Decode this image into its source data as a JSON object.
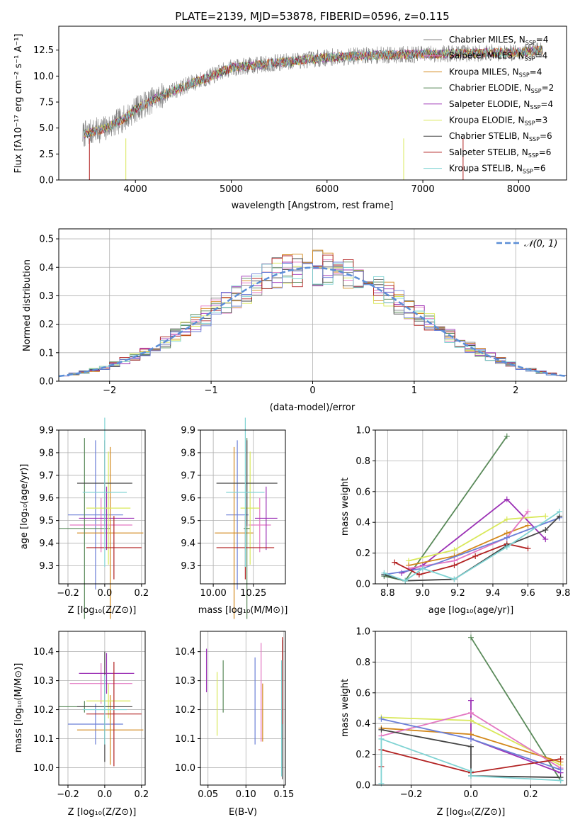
{
  "chart_data": [
    {
      "type": "line",
      "title": "PLATE=2139, MJD=53878, FIBERID=0596, z=0.115",
      "xlabel": "wavelength [Angstrom, rest frame]",
      "ylabel": "Flux [fλ10⁻¹⁷ erg cm⁻² s⁻¹ A⁻¹]",
      "xlim": [
        3200,
        8500
      ],
      "ylim": [
        0,
        14.8
      ],
      "xticks": [
        "4000",
        "5000",
        "6000",
        "7000",
        "8000"
      ],
      "yticks": [
        "0.0",
        "2.5",
        "5.0",
        "7.5",
        "10.0",
        "12.5"
      ],
      "legend_position": "right",
      "series": [
        {
          "name": "Chabrier MILES, N_SSP=4",
          "color": "#808080"
        },
        {
          "name": "Salpeter MILES, N_SSP=4",
          "color": "#e377c2"
        },
        {
          "name": "Kroupa MILES, N_SSP=4",
          "color": "#d2871a"
        },
        {
          "name": "Chabrier ELODIE, N_SSP=2",
          "color": "#5a8a5a"
        },
        {
          "name": "Salpeter ELODIE, N_SSP=4",
          "color": "#9b30b5"
        },
        {
          "name": "Kroupa ELODIE, N_SSP=3",
          "color": "#d9e85a"
        },
        {
          "name": "Chabrier STELIB, N_SSP=6",
          "color": "#444444"
        },
        {
          "name": "Salpeter STELIB, N_SSP=6",
          "color": "#b22222"
        },
        {
          "name": "Kroupa STELIB, N_SSP=6",
          "color": "#7fd3d3"
        }
      ],
      "continuum": {
        "x": [
          3500,
          3700,
          3900,
          4000,
          4200,
          4500,
          4800,
          5000,
          5500,
          6000,
          6500,
          7000,
          7500,
          8000,
          8250
        ],
        "y": [
          4.5,
          5.0,
          6.0,
          6.8,
          7.8,
          9.0,
          10.0,
          10.8,
          11.3,
          11.8,
          12.0,
          12.1,
          12.2,
          12.3,
          12.5
        ]
      }
    },
    {
      "type": "line",
      "xlabel": "(data-model)/error",
      "ylabel": "Normed distribution",
      "xlim": [
        -2.5,
        2.5
      ],
      "ylim": [
        0,
        0.535
      ],
      "xticks": [
        "−2",
        "−1",
        "0",
        "1",
        "2"
      ],
      "yticks": [
        "0.0",
        "0.1",
        "0.2",
        "0.3",
        "0.4",
        "0.5"
      ],
      "grid": true,
      "legend": [
        "𝒩(0, 1)"
      ],
      "legend_position": "top-right"
    },
    {
      "type": "scatter",
      "xlabel": "Z [log₁₀(Z/Z⊙)]",
      "ylabel": "age  [log₁₀(age/yr)]",
      "xlim": [
        -0.25,
        0.22
      ],
      "ylim": [
        9.22,
        9.9
      ],
      "xticks": [
        "−0.2",
        "0.0",
        "0.2"
      ],
      "yticks": [
        "9.3",
        "9.4",
        "9.5",
        "9.6",
        "9.7",
        "9.8",
        "9.9"
      ],
      "points": [
        {
          "x": -0.05,
          "y": 9.525,
          "xerr": 0.15,
          "yerr": 0.33,
          "color": "#6b7fd7"
        },
        {
          "x": -0.02,
          "y": 9.48,
          "xerr": 0.17,
          "yerr": 0.12,
          "color": "#e377c2"
        },
        {
          "x": 0.03,
          "y": 9.445,
          "xerr": 0.18,
          "yerr": 0.38,
          "color": "#d2871a"
        },
        {
          "x": -0.11,
          "y": 9.465,
          "xerr": 0.14,
          "yerr": 0.4,
          "color": "#5a8a5a"
        },
        {
          "x": 0.01,
          "y": 9.51,
          "xerr": 0.15,
          "yerr": 0.14,
          "color": "#9b30b5"
        },
        {
          "x": 0.02,
          "y": 9.555,
          "xerr": 0.12,
          "yerr": 0.25,
          "color": "#d9e85a"
        },
        {
          "x": 0.0,
          "y": 9.665,
          "xerr": 0.15,
          "yerr": 0.19,
          "color": "#444444"
        },
        {
          "x": 0.05,
          "y": 9.38,
          "xerr": 0.15,
          "yerr": 0.14,
          "color": "#b22222"
        },
        {
          "x": 0.0,
          "y": 9.625,
          "xerr": 0.12,
          "yerr": 0.33,
          "color": "#7fd3d3"
        }
      ]
    },
    {
      "type": "scatter",
      "xlabel": "mass [log₁₀(M/M⊙)]",
      "xlim": [
        9.92,
        10.45
      ],
      "ylim": [
        9.22,
        9.9
      ],
      "xticks": [
        "10.00",
        "10.25"
      ],
      "yticks": [
        "9.3",
        "9.4",
        "9.5",
        "9.6",
        "9.7",
        "9.8",
        "9.9"
      ],
      "points": [
        {
          "x": 10.15,
          "y": 9.525,
          "xerr": 0.07,
          "yerr": 0.33,
          "color": "#6b7fd7"
        },
        {
          "x": 10.29,
          "y": 9.48,
          "xerr": 0.07,
          "yerr": 0.12,
          "color": "#e377c2"
        },
        {
          "x": 10.13,
          "y": 9.445,
          "xerr": 0.12,
          "yerr": 0.38,
          "color": "#d2871a"
        },
        {
          "x": 10.21,
          "y": 9.465,
          "xerr": 0.02,
          "yerr": 0.4,
          "color": "#5a8a5a"
        },
        {
          "x": 10.33,
          "y": 9.51,
          "xerr": 0.07,
          "yerr": 0.14,
          "color": "#9b30b5"
        },
        {
          "x": 10.23,
          "y": 9.555,
          "xerr": 0.06,
          "yerr": 0.25,
          "color": "#d9e85a"
        },
        {
          "x": 10.21,
          "y": 9.665,
          "xerr": 0.19,
          "yerr": 0.19,
          "color": "#444444"
        },
        {
          "x": 10.2,
          "y": 9.38,
          "xerr": 0.18,
          "yerr": 0.14,
          "color": "#b22222"
        },
        {
          "x": 10.2,
          "y": 9.625,
          "xerr": 0.12,
          "yerr": 0.33,
          "color": "#7fd3d3"
        }
      ]
    },
    {
      "type": "line",
      "xlabel": "age  [log₁₀(age/yr)]",
      "ylabel": "mass weight",
      "xlim": [
        8.73,
        9.82
      ],
      "ylim": [
        0,
        1.0
      ],
      "xticks": [
        "8.8",
        "9.0",
        "9.2",
        "9.4",
        "9.6",
        "9.8"
      ],
      "yticks": [
        "0.0",
        "0.2",
        "0.4",
        "0.6",
        "0.8",
        "1.0"
      ],
      "grid": true,
      "series": [
        {
          "color": "#5a8a5a",
          "x": [
            8.78,
            8.9,
            9.48
          ],
          "y": [
            0.05,
            0.02,
            0.96
          ]
        },
        {
          "color": "#9b30b5",
          "x": [
            8.88,
            9.0,
            9.48,
            9.7
          ],
          "y": [
            0.07,
            0.12,
            0.55,
            0.29
          ]
        },
        {
          "color": "#d9e85a",
          "x": [
            8.92,
            9.18,
            9.48,
            9.7
          ],
          "y": [
            0.15,
            0.22,
            0.42,
            0.44
          ]
        },
        {
          "color": "#d2871a",
          "x": [
            8.92,
            9.18,
            9.48,
            9.6
          ],
          "y": [
            0.12,
            0.18,
            0.33,
            0.38
          ]
        },
        {
          "color": "#e377c2",
          "x": [
            8.92,
            9.18,
            9.48,
            9.6
          ],
          "y": [
            0.1,
            0.15,
            0.3,
            0.47
          ]
        },
        {
          "color": "#6b7fd7",
          "x": [
            8.78,
            9.0,
            9.48,
            9.78
          ],
          "y": [
            0.06,
            0.1,
            0.3,
            0.43
          ]
        },
        {
          "color": "#b22222",
          "x": [
            8.84,
            8.98,
            9.18,
            9.3,
            9.48,
            9.6
          ],
          "y": [
            0.14,
            0.06,
            0.12,
            0.18,
            0.26,
            0.23
          ]
        },
        {
          "color": "#444444",
          "x": [
            8.78,
            8.9,
            9.18,
            9.48,
            9.7,
            9.78
          ],
          "y": [
            0.06,
            0.02,
            0.03,
            0.25,
            0.35,
            0.44
          ]
        },
        {
          "color": "#7fd3d3",
          "x": [
            8.78,
            8.9,
            9.0,
            9.18,
            9.48,
            9.78
          ],
          "y": [
            0.07,
            0.02,
            0.1,
            0.03,
            0.24,
            0.47
          ]
        }
      ]
    },
    {
      "type": "scatter",
      "xlabel": "Z [log₁₀(Z/Z⊙)]",
      "ylabel": "mass [log₁₀(M/M⊙)]",
      "xlim": [
        -0.25,
        0.22
      ],
      "ylim": [
        9.94,
        10.47
      ],
      "xticks": [
        "−0.2",
        "0.0",
        "0.2"
      ],
      "yticks": [
        "10.0",
        "10.1",
        "10.2",
        "10.3",
        "10.4"
      ],
      "points": [
        {
          "x": -0.05,
          "y": 10.15,
          "xerr": 0.15,
          "yerr": 0.07,
          "color": "#6b7fd7"
        },
        {
          "x": -0.02,
          "y": 10.29,
          "xerr": 0.17,
          "yerr": 0.07,
          "color": "#e377c2"
        },
        {
          "x": 0.03,
          "y": 10.13,
          "xerr": 0.18,
          "yerr": 0.12,
          "color": "#d2871a"
        },
        {
          "x": -0.11,
          "y": 10.21,
          "xerr": 0.14,
          "yerr": 0.02,
          "color": "#5a8a5a"
        },
        {
          "x": 0.01,
          "y": 10.325,
          "xerr": 0.15,
          "yerr": 0.07,
          "color": "#9b30b5"
        },
        {
          "x": 0.02,
          "y": 10.23,
          "xerr": 0.12,
          "yerr": 0.06,
          "color": "#d9e85a"
        },
        {
          "x": 0.0,
          "y": 10.21,
          "xerr": 0.15,
          "yerr": 0.19,
          "color": "#444444"
        },
        {
          "x": 0.05,
          "y": 10.185,
          "xerr": 0.15,
          "yerr": 0.18,
          "color": "#b22222"
        },
        {
          "x": 0.0,
          "y": 10.2,
          "xerr": 0.12,
          "yerr": 0.12,
          "color": "#7fd3d3"
        }
      ]
    },
    {
      "type": "scatter",
      "xlabel": "E(B-V)",
      "xlim": [
        0.04,
        0.152
      ],
      "ylim": [
        9.94,
        10.47
      ],
      "xticks": [
        "0.05",
        "0.10",
        "0.15"
      ],
      "yticks": [
        "10.0",
        "10.1",
        "10.2",
        "10.3",
        "10.4"
      ],
      "points": [
        {
          "x": 0.112,
          "y": 10.23,
          "yerr": 0.15,
          "color": "#6b7fd7"
        },
        {
          "x": 0.12,
          "y": 10.26,
          "yerr": 0.17,
          "color": "#e377c2"
        },
        {
          "x": 0.122,
          "y": 10.19,
          "yerr": 0.1,
          "color": "#d2871a"
        },
        {
          "x": 0.07,
          "y": 10.28,
          "yerr": 0.09,
          "color": "#5a8a5a"
        },
        {
          "x": 0.048,
          "y": 10.335,
          "yerr": 0.075,
          "color": "#9b30b5"
        },
        {
          "x": 0.062,
          "y": 10.22,
          "yerr": 0.11,
          "color": "#d9e85a"
        },
        {
          "x": 0.148,
          "y": 10.2,
          "yerr": 0.24,
          "color": "#444444"
        },
        {
          "x": 0.148,
          "y": 10.3,
          "yerr": 0.15,
          "color": "#b22222"
        },
        {
          "x": 0.147,
          "y": 10.17,
          "yerr": 0.2,
          "color": "#7fd3d3"
        }
      ]
    },
    {
      "type": "line",
      "xlabel": "Z [log₁₀(Z/Z⊙)]",
      "ylabel": "mass weight",
      "xlim": [
        -0.32,
        0.32
      ],
      "ylim": [
        0,
        1.0
      ],
      "xticks": [
        "−0.2",
        "0.0",
        "0.2"
      ],
      "yticks": [
        "0.0",
        "0.2",
        "0.4",
        "0.6",
        "0.8",
        "1.0"
      ],
      "grid": true,
      "series": [
        {
          "color": "#5a8a5a",
          "x": [
            0.0,
            0.3
          ],
          "y": [
            0.96,
            0.03
          ]
        },
        {
          "color": "#9b30b5",
          "x": [
            0.0,
            0.0,
            0.3
          ],
          "y": [
            0.55,
            0.3,
            0.08
          ]
        },
        {
          "color": "#d9e85a",
          "x": [
            -0.3,
            0.0,
            0.3
          ],
          "y": [
            0.44,
            0.42,
            0.13
          ]
        },
        {
          "color": "#d2871a",
          "x": [
            -0.3,
            0.0,
            0.3
          ],
          "y": [
            0.37,
            0.33,
            0.15
          ]
        },
        {
          "color": "#e377c2",
          "x": [
            -0.3,
            0.0,
            0.3
          ],
          "y": [
            0.32,
            0.47,
            0.11
          ]
        },
        {
          "color": "#6b7fd7",
          "x": [
            -0.3,
            0.0,
            0.3
          ],
          "y": [
            0.43,
            0.3,
            0.1
          ]
        },
        {
          "color": "#b22222",
          "x": [
            -0.3,
            -0.3,
            0.0,
            0.3
          ],
          "y": [
            0.12,
            0.23,
            0.08,
            0.17
          ]
        },
        {
          "color": "#444444",
          "x": [
            -0.3,
            0.0,
            0.0,
            0.3
          ],
          "y": [
            0.36,
            0.25,
            0.06,
            0.05
          ]
        },
        {
          "color": "#7fd3d3",
          "x": [
            -0.3,
            -0.3,
            0.0,
            0.0,
            0.3
          ],
          "y": [
            0.01,
            0.3,
            0.09,
            0.06,
            0.03
          ]
        }
      ]
    }
  ]
}
